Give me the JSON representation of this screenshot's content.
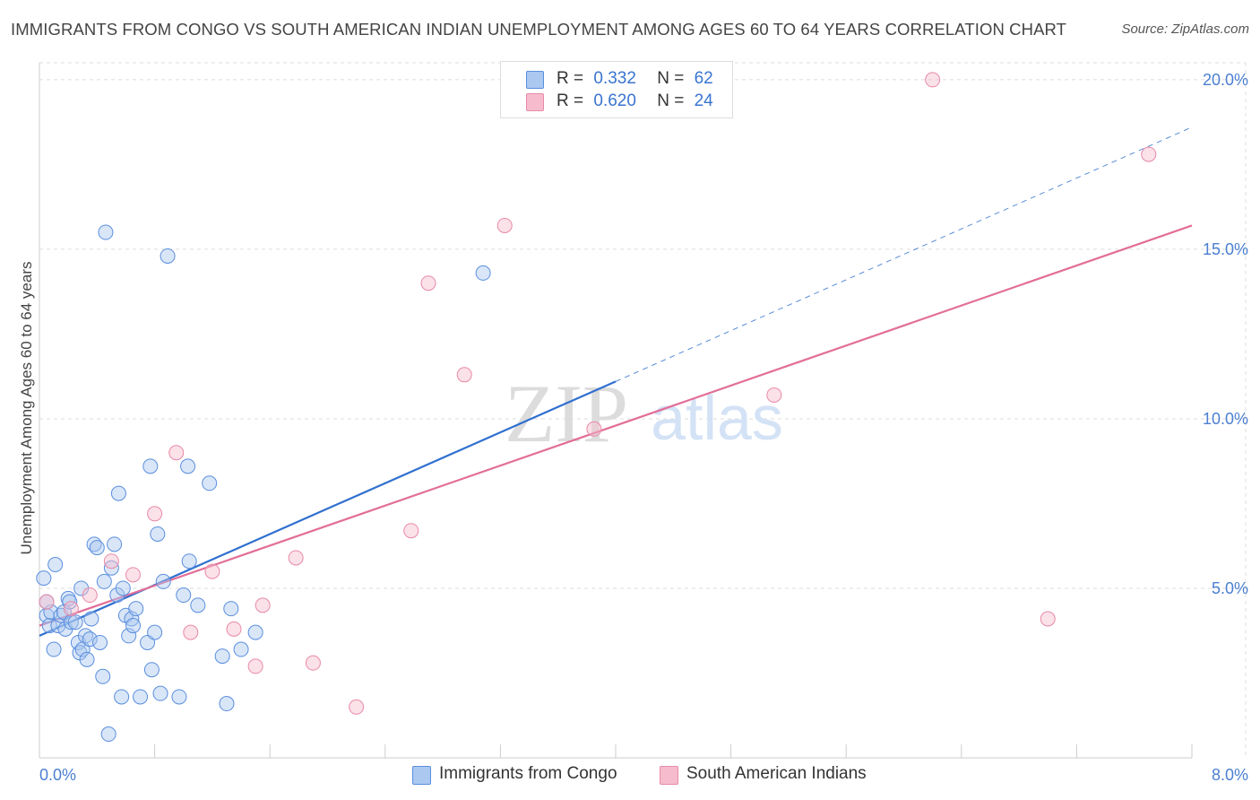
{
  "title": "IMMIGRANTS FROM CONGO VS SOUTH AMERICAN INDIAN UNEMPLOYMENT AMONG AGES 60 TO 64 YEARS CORRELATION CHART",
  "source": "Source: ZipAtlas.com",
  "watermark": {
    "zip": "ZIP",
    "atlas": "atlas"
  },
  "legend": {
    "r_label": "R =",
    "n_label": "N =",
    "rows": [
      {
        "r": "0.332",
        "n": "62"
      },
      {
        "r": "0.620",
        "n": "24"
      }
    ]
  },
  "colors": {
    "blue_fill": "#aac8f0",
    "blue_stroke": "#5a8ede",
    "blue_line": "#2f6fcf",
    "pink_fill": "#f6bccd",
    "pink_stroke": "#e889a8",
    "pink_line": "#e26e98",
    "grid": "#dddddd",
    "tick_text": "#4a7fd0"
  },
  "chart_data": {
    "type": "scatter",
    "title": "IMMIGRANTS FROM CONGO VS SOUTH AMERICAN INDIAN UNEMPLOYMENT AMONG AGES 60 TO 64 YEARS CORRELATION CHART",
    "xlabel": "",
    "ylabel": "Unemployment Among Ages 60 to 64 years",
    "xlim": [
      0,
      8
    ],
    "ylim": [
      0,
      20.5
    ],
    "x_tick_labels": [
      "0.0%",
      "8.0%"
    ],
    "y_ticks": [
      5,
      10,
      15,
      20
    ],
    "y_tick_labels": [
      "5.0%",
      "10.0%",
      "15.0%",
      "20.0%"
    ],
    "grid": "horizontal dashed",
    "legend_position": "top-center",
    "series": [
      {
        "name": "Immigrants from Congo",
        "r": 0.332,
        "n": 62,
        "trend": {
          "x": [
            0,
            4.0
          ],
          "y": [
            3.6,
            11.1
          ],
          "extended_to": [
            8.0,
            18.6
          ]
        },
        "points": [
          [
            0.03,
            5.3
          ],
          [
            0.05,
            4.2
          ],
          [
            0.07,
            3.9
          ],
          [
            0.08,
            4.3
          ],
          [
            0.1,
            3.2
          ],
          [
            0.11,
            5.7
          ],
          [
            0.13,
            3.9
          ],
          [
            0.15,
            4.2
          ],
          [
            0.17,
            4.3
          ],
          [
            0.18,
            3.8
          ],
          [
            0.2,
            4.7
          ],
          [
            0.21,
            4.6
          ],
          [
            0.22,
            4.0
          ],
          [
            0.25,
            4.0
          ],
          [
            0.27,
            3.4
          ],
          [
            0.28,
            3.1
          ],
          [
            0.29,
            5.0
          ],
          [
            0.3,
            3.2
          ],
          [
            0.32,
            3.6
          ],
          [
            0.33,
            2.9
          ],
          [
            0.35,
            3.5
          ],
          [
            0.36,
            4.1
          ],
          [
            0.38,
            6.3
          ],
          [
            0.4,
            6.2
          ],
          [
            0.42,
            3.4
          ],
          [
            0.44,
            2.4
          ],
          [
            0.45,
            5.2
          ],
          [
            0.46,
            15.5
          ],
          [
            0.48,
            0.7
          ],
          [
            0.5,
            5.6
          ],
          [
            0.52,
            6.3
          ],
          [
            0.54,
            4.8
          ],
          [
            0.55,
            7.8
          ],
          [
            0.57,
            1.8
          ],
          [
            0.58,
            5.0
          ],
          [
            0.6,
            4.2
          ],
          [
            0.62,
            3.6
          ],
          [
            0.64,
            4.1
          ],
          [
            0.65,
            3.9
          ],
          [
            0.67,
            4.4
          ],
          [
            0.7,
            1.8
          ],
          [
            0.75,
            3.4
          ],
          [
            0.77,
            8.6
          ],
          [
            0.78,
            2.6
          ],
          [
            0.8,
            3.7
          ],
          [
            0.82,
            6.6
          ],
          [
            0.84,
            1.9
          ],
          [
            0.86,
            5.2
          ],
          [
            0.89,
            14.8
          ],
          [
            0.97,
            1.8
          ],
          [
            1.0,
            4.8
          ],
          [
            1.03,
            8.6
          ],
          [
            1.04,
            5.8
          ],
          [
            1.1,
            4.5
          ],
          [
            1.18,
            8.1
          ],
          [
            1.27,
            3.0
          ],
          [
            1.3,
            1.6
          ],
          [
            1.33,
            4.4
          ],
          [
            1.4,
            3.2
          ],
          [
            1.5,
            3.7
          ],
          [
            3.08,
            14.3
          ],
          [
            0.05,
            4.6
          ]
        ]
      },
      {
        "name": "South American Indians",
        "r": 0.62,
        "n": 24,
        "trend": {
          "x": [
            0,
            8.0
          ],
          "y": [
            3.9,
            15.7
          ]
        },
        "points": [
          [
            0.05,
            4.6
          ],
          [
            0.22,
            4.4
          ],
          [
            0.35,
            4.8
          ],
          [
            0.5,
            5.8
          ],
          [
            0.65,
            5.4
          ],
          [
            0.8,
            7.2
          ],
          [
            0.95,
            9.0
          ],
          [
            1.05,
            3.7
          ],
          [
            1.2,
            5.5
          ],
          [
            1.35,
            3.8
          ],
          [
            1.5,
            2.7
          ],
          [
            1.55,
            4.5
          ],
          [
            1.78,
            5.9
          ],
          [
            1.9,
            2.8
          ],
          [
            2.2,
            1.5
          ],
          [
            2.58,
            6.7
          ],
          [
            2.7,
            14.0
          ],
          [
            2.95,
            11.3
          ],
          [
            3.23,
            15.7
          ],
          [
            3.85,
            9.7
          ],
          [
            5.1,
            10.7
          ],
          [
            6.2,
            20.0
          ],
          [
            7.0,
            4.1
          ],
          [
            7.7,
            17.8
          ]
        ]
      }
    ]
  }
}
